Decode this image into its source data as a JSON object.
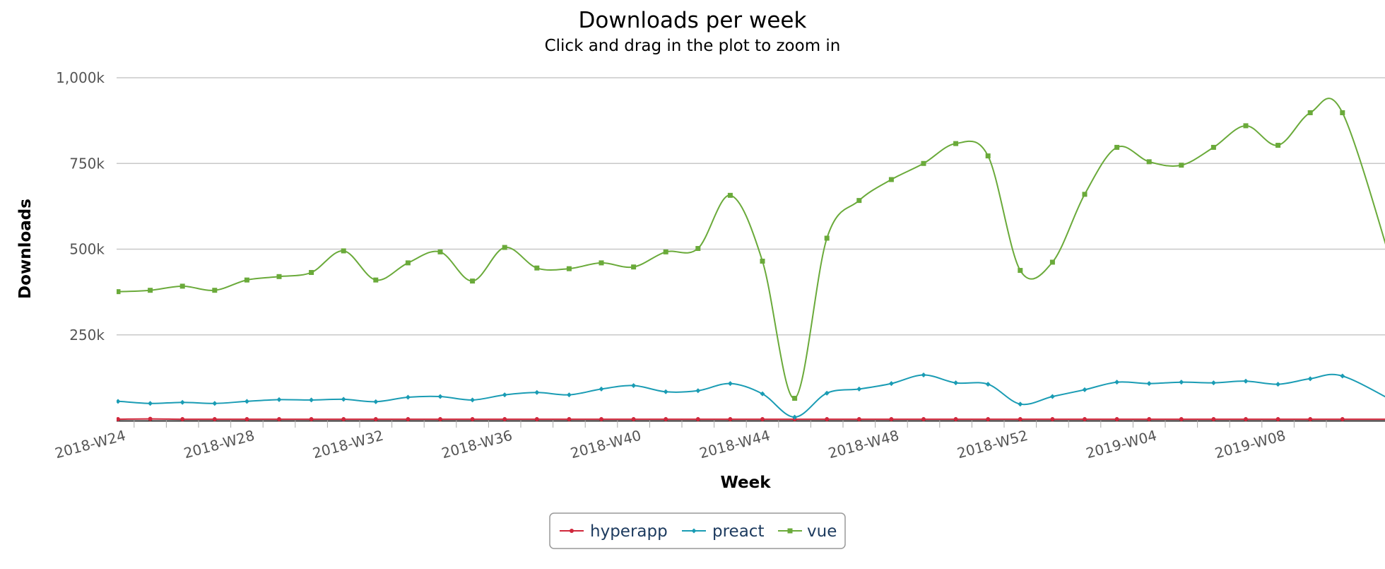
{
  "chart_data": {
    "type": "line",
    "title": "Downloads per week",
    "subtitle": "Click and drag in the plot to zoom in",
    "xlabel": "Week",
    "ylabel": "Downloads",
    "ylim": [
      0,
      1000000
    ],
    "yticks": [
      250000,
      500000,
      750000,
      1000000
    ],
    "ytick_labels": [
      "250k",
      "500k",
      "750k",
      "1,000k"
    ],
    "xtick_labels": [
      "2018-W24",
      "2018-W28",
      "2018-W32",
      "2018-W36",
      "2018-W40",
      "2018-W44",
      "2018-W48",
      "2018-W52",
      "2019-W04",
      "2019-W08"
    ],
    "categories": [
      "2018-W24",
      "2018-W25",
      "2018-W26",
      "2018-W27",
      "2018-W28",
      "2018-W29",
      "2018-W30",
      "2018-W31",
      "2018-W32",
      "2018-W33",
      "2018-W34",
      "2018-W35",
      "2018-W36",
      "2018-W37",
      "2018-W38",
      "2018-W39",
      "2018-W40",
      "2018-W41",
      "2018-W42",
      "2018-W43",
      "2018-W44",
      "2018-W45",
      "2018-W46",
      "2018-W47",
      "2018-W48",
      "2018-W49",
      "2018-W50",
      "2018-W51",
      "2018-W52",
      "2019-W01",
      "2019-W02",
      "2019-W03",
      "2019-W04",
      "2019-W05",
      "2019-W06",
      "2019-W07",
      "2019-W08",
      "2019-W09",
      "2019-W10"
    ],
    "grid": true,
    "legend_position": "bottom-center",
    "series": [
      {
        "name": "hyperapp",
        "color": "#d0273b",
        "marker": "circle",
        "values": [
          4000,
          5000,
          4000,
          4000,
          4000,
          4000,
          4000,
          4000,
          4000,
          4000,
          4000,
          4000,
          4000,
          4000,
          4000,
          4000,
          4000,
          4000,
          4000,
          4000,
          4000,
          4000,
          4000,
          4000,
          4000,
          4000,
          4000,
          4000,
          4000,
          4000,
          4000,
          4000,
          4000,
          4000,
          4000,
          4000,
          4000,
          4000,
          4000
        ]
      },
      {
        "name": "preact",
        "color": "#1a9cb4",
        "marker": "diamond",
        "values": [
          56000,
          50000,
          53000,
          50000,
          56000,
          61000,
          60000,
          62000,
          55000,
          68000,
          70000,
          60000,
          75000,
          82000,
          75000,
          92000,
          102000,
          84000,
          87000,
          108000,
          78000,
          10000,
          80000,
          92000,
          108000,
          133000,
          110000,
          106000,
          48000,
          70000,
          90000,
          112000,
          108000,
          112000,
          110000,
          115000,
          106000,
          122000,
          130000
        ]
      },
      {
        "name": "vue",
        "color": "#6aaa3a",
        "marker": "square",
        "values": [
          376000,
          380000,
          392000,
          380000,
          410000,
          420000,
          432000,
          495000,
          410000,
          460000,
          492000,
          407000,
          505000,
          445000,
          443000,
          460000,
          448000,
          492000,
          502000,
          657000,
          465000,
          65000,
          532000,
          642000,
          703000,
          750000,
          808000,
          772000,
          438000,
          462000,
          660000,
          797000,
          755000,
          745000,
          797000,
          860000,
          803000,
          898000,
          898000
        ]
      }
    ]
  }
}
